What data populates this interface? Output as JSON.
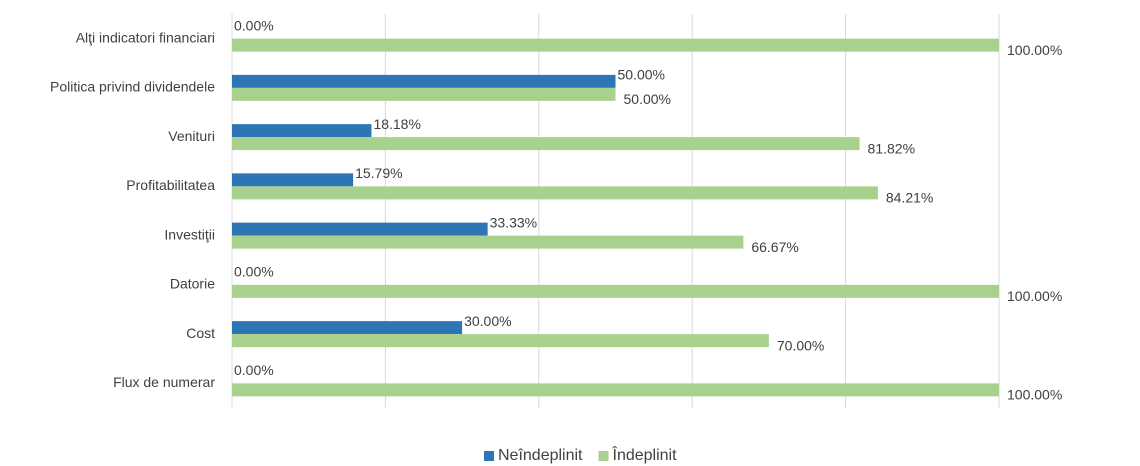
{
  "chart_data": {
    "type": "bar",
    "orientation": "horizontal",
    "categories": [
      "Alţi indicatori financiari",
      "Politica privind dividendele",
      "Venituri",
      "Profitabilitatea",
      "Investiţii",
      "Datorie",
      "Cost",
      "Flux de numerar"
    ],
    "series": [
      {
        "name": "Neîndeplinit",
        "color": "#2e75b6",
        "values": [
          0,
          50,
          18.18,
          15.79,
          33.33,
          0,
          30,
          0
        ],
        "value_labels": [
          "0.00%",
          "50.00%",
          "18.18%",
          "15.79%",
          "33.33%",
          "0.00%",
          "30.00%",
          "0.00%"
        ]
      },
      {
        "name": "Îndeplinit",
        "color": "#a9d18e",
        "values": [
          100,
          50,
          81.82,
          84.21,
          66.67,
          100,
          70,
          100
        ],
        "value_labels": [
          "100.00%",
          "50.00%",
          "81.82%",
          "84.21%",
          "66.67%",
          "100.00%",
          "70.00%",
          "100.00%"
        ]
      }
    ],
    "xlim": [
      0,
      100
    ],
    "xticks": [
      0,
      20,
      40,
      60,
      80,
      100
    ],
    "grid": true,
    "legend": "bottom"
  }
}
